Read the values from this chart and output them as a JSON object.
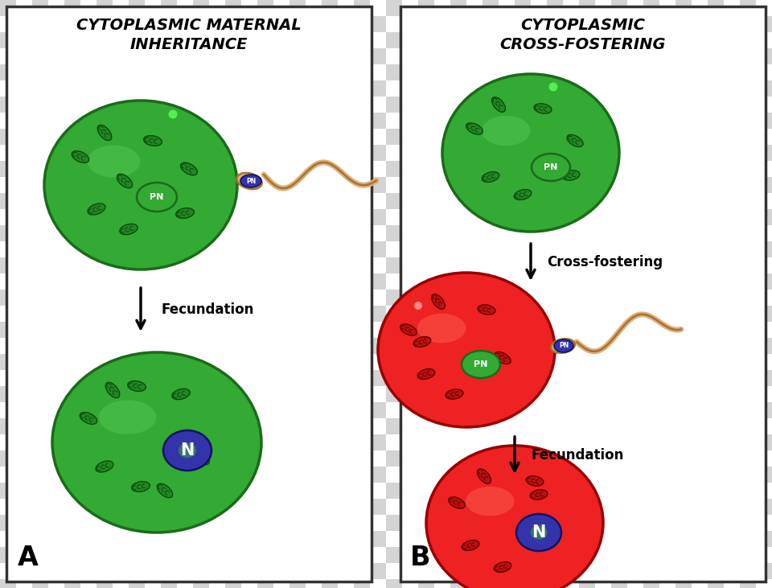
{
  "title_A": "CYTOPLASMIC MATERNAL\nINHERITANCE",
  "title_B": "CYTOPLASMIC\nCROSS-FOSTERING",
  "label_A": "A",
  "label_B": "B",
  "fecundation_label": "Fecundation",
  "cross_fostering_label": "Cross-fostering",
  "green_cell_color": "#33aa33",
  "green_cell_edge": "#1a6b1a",
  "green_cell_light": "#55cc55",
  "red_cell_color": "#ee2222",
  "red_cell_edge": "#990000",
  "red_cell_light": "#ff6655",
  "nucleus_N_color": "#3333aa",
  "nucleus_N_edge": "#111166",
  "nucleus_N_green": "#33aa33",
  "nucleus_PN_green_color": "#33aa33",
  "nucleus_PN_blue_color": "#3333aa",
  "nucleus_PN_edge_green": "#1a6b1a",
  "nucleus_PN_edge_blue": "#111166",
  "mito_green_color": "#228822",
  "mito_green_edge": "#0a4a0a",
  "mito_red_color": "#bb1111",
  "mito_red_edge": "#660000",
  "sperm_fill": "#ddb07a",
  "sperm_edge": "#aa7030",
  "dot_green": "#55ee55",
  "dot_red": "#ff8888",
  "bg_light": "#d4d4d4",
  "bg_dark": "#ffffff",
  "border_color": "#222222",
  "checker_size": 20,
  "panel_border": "#333333",
  "arrow_color": "#000000"
}
